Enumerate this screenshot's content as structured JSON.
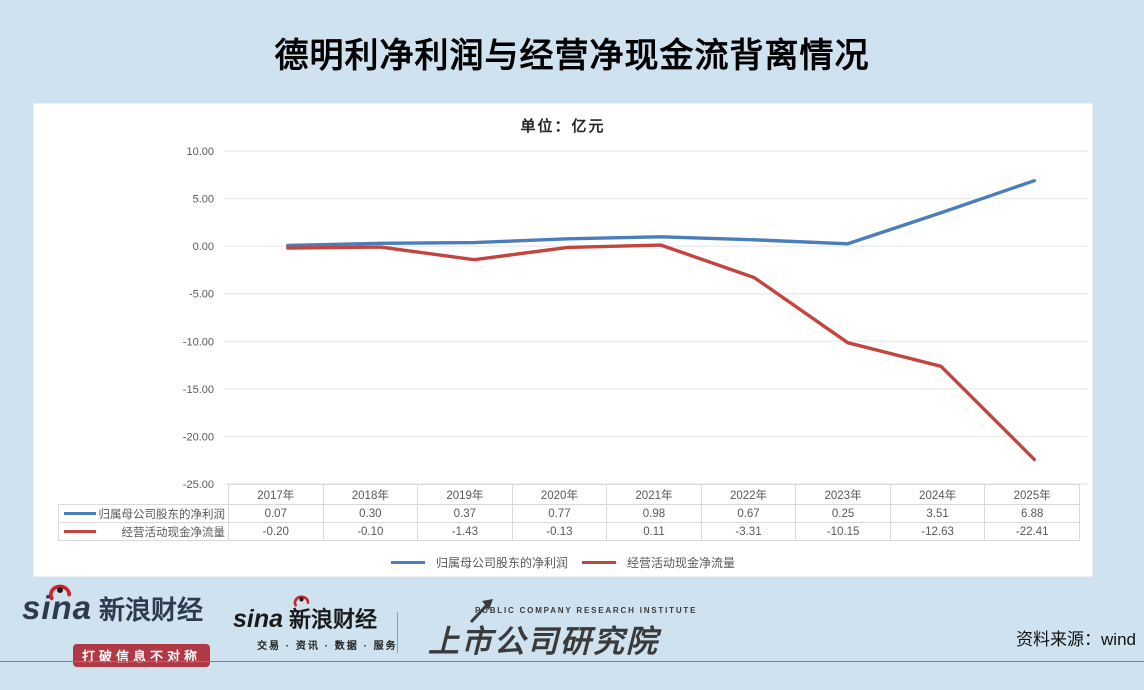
{
  "page": {
    "title": "德明利净利润与经营净现金流背离情况",
    "source_label": "资料来源：wind"
  },
  "chart_data": {
    "type": "line",
    "title": "德明利净利润与经营净现金流背离情况",
    "subtitle": "单位：亿元",
    "categories": [
      "2017年",
      "2018年",
      "2019年",
      "2020年",
      "2021年",
      "2022年",
      "2023年",
      "2024年",
      "2025年"
    ],
    "series": [
      {
        "name": "归属母公司股东的净利润",
        "color": "#4a7ebb",
        "values": [
          0.07,
          0.3,
          0.37,
          0.77,
          0.98,
          0.67,
          0.25,
          3.51,
          6.88
        ]
      },
      {
        "name": "经营活动现金净流量",
        "color": "#c2463f",
        "values": [
          -0.2,
          -0.1,
          -1.43,
          -0.13,
          0.11,
          -3.31,
          -10.15,
          -12.63,
          -22.41
        ]
      }
    ],
    "ylim": [
      -25,
      10
    ],
    "ytick_labels": [
      "10.00",
      "5.00",
      "0.00",
      "-5.00",
      "-10.00",
      "-15.00",
      "-20.00",
      "-25.00"
    ],
    "grid": true,
    "legend_position": "bottom",
    "value_format_decimals": 2
  },
  "footer": {
    "sina_wordmark": "sina",
    "sina_brand": "新浪财经",
    "sina_slogan": "打破信息不对称",
    "sina_services": "交易 · 资讯 · 数据 · 服务",
    "institute_en": "PUBLIC COMPANY RESEARCH INSTITUTE",
    "institute_cn": "上市公司研究院"
  }
}
